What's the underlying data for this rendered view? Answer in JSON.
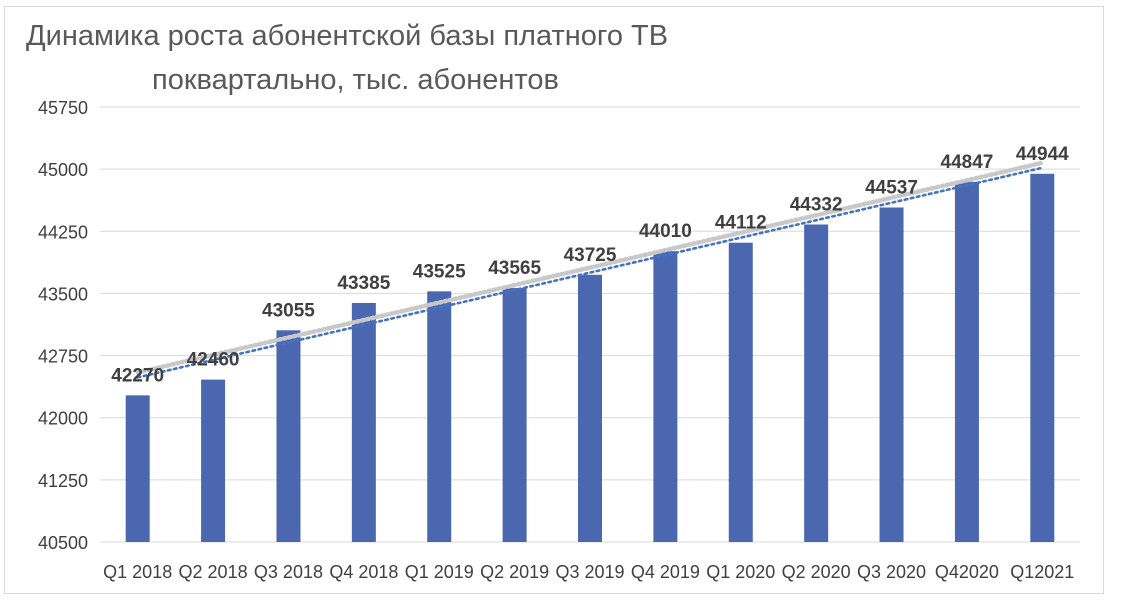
{
  "chart_data": {
    "type": "bar",
    "title_lines": [
      "Динамика роста абонентской базы платного ТВ",
      "поквартально, тыс. абонентов"
    ],
    "categories": [
      "Q1 2018",
      "Q2 2018",
      "Q3 2018",
      "Q4 2018",
      "Q1 2019",
      "Q2 2019",
      "Q3 2019",
      "Q4 2019",
      "Q1 2020",
      "Q2 2020",
      "Q3 2020",
      "Q42020",
      "Q12021"
    ],
    "values": [
      42270,
      42460,
      43055,
      43385,
      43525,
      43565,
      43725,
      44010,
      44112,
      44332,
      44537,
      44847,
      44944
    ],
    "value_labels": [
      "42270",
      "42460",
      "43055",
      "43385",
      "43525",
      "43565",
      "43725",
      "44010",
      "44112",
      "44332",
      "44537",
      "44847",
      "44944"
    ],
    "ylim": [
      40500,
      45750
    ],
    "yticks": [
      40500,
      41250,
      42000,
      42750,
      43500,
      44250,
      45000,
      45750
    ],
    "ytick_labels": [
      "40500",
      "41250",
      "42000",
      "42750",
      "43500",
      "44250",
      "45000",
      "45750"
    ],
    "xlabel": "",
    "ylabel": "",
    "grid": true,
    "legend": "none",
    "trendlines": [
      {
        "type": "linear",
        "style": "dotted",
        "color": "#c8c8c8"
      },
      {
        "type": "linear",
        "style": "dotted",
        "color": "#4472c4"
      }
    ],
    "colors": {
      "bar": "#4a67b0",
      "grid": "#d9d9d9",
      "tick_text": "#404040",
      "label_text": "#404040",
      "title_text": "#595959"
    }
  }
}
